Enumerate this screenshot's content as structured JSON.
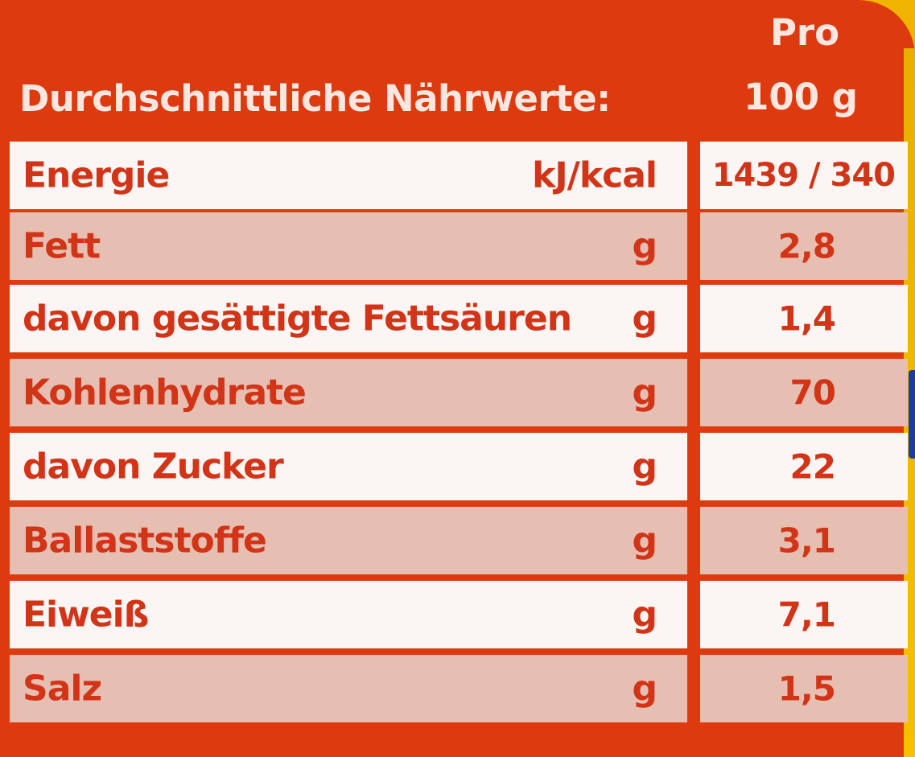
{
  "header": {
    "label": "Durchschnittliche Nährwerte:",
    "column_top": "Pro",
    "column_bottom": "100 g"
  },
  "rows": [
    {
      "name": "Energie",
      "unit": "kJ/kcal",
      "value": "1439 / 340"
    },
    {
      "name": "Fett",
      "unit": "g",
      "value": "2,8"
    },
    {
      "name": "davon gesättigte Fettsäuren",
      "unit": "g",
      "value": "1,4"
    },
    {
      "name": "Kohlenhydrate",
      "unit": "g",
      "value": "70"
    },
    {
      "name": "davon Zucker",
      "unit": "g",
      "value": "22"
    },
    {
      "name": "Ballaststoffe",
      "unit": "g",
      "value": "3,1"
    },
    {
      "name": "Eiweiß",
      "unit": "g",
      "value": "7,1"
    },
    {
      "name": "Salz",
      "unit": "g",
      "value": "1,5"
    }
  ],
  "colors": {
    "panel": "#de3a10",
    "text_red": "#d23418",
    "row_light": "#fbf5f3",
    "row_dark": "#e7bfb2",
    "header_text": "#fbe7df"
  }
}
